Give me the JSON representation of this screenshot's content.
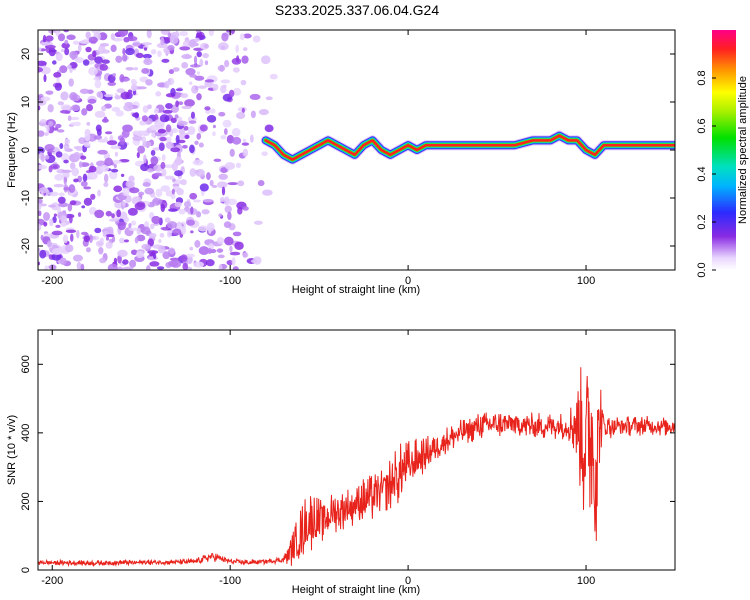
{
  "title": "S233.2025.337.06.04.G24",
  "chart_data": [
    {
      "type": "heatmap",
      "name": "spectrogram",
      "xlabel": "Height of straight line (km)",
      "ylabel": "Frequency (Hz)",
      "xlim": [
        -208,
        150
      ],
      "ylim": [
        -25,
        25
      ],
      "xticks": [
        -200,
        -100,
        0,
        100
      ],
      "yticks": [
        -20,
        -10,
        0,
        10,
        20
      ],
      "colorbar": {
        "label": "Normalized spectral amplitude",
        "ticks": [
          "0.0",
          "0.2",
          "0.4",
          "0.6",
          "0.8"
        ],
        "tick_values": [
          0.0,
          0.2,
          0.4,
          0.6,
          0.8
        ],
        "range": [
          0,
          1
        ]
      },
      "noise_region_x": [
        -208,
        -72
      ],
      "signal_track": {
        "x": [
          -80,
          -75,
          -70,
          -65,
          -60,
          -55,
          -50,
          -45,
          -40,
          -35,
          -30,
          -25,
          -20,
          -15,
          -10,
          -5,
          0,
          5,
          10,
          15,
          20,
          30,
          40,
          50,
          60,
          70,
          80,
          85,
          90,
          95,
          100,
          105,
          110,
          120,
          130,
          140,
          150
        ],
        "freq_hz": [
          2,
          1,
          -1,
          -2,
          -1,
          0,
          1,
          2,
          1,
          0,
          -1,
          1,
          2,
          0,
          -1,
          0,
          1,
          0,
          1,
          1,
          1,
          1,
          1,
          1,
          1,
          2,
          2,
          3,
          2,
          2,
          0,
          -1,
          1,
          1,
          1,
          1,
          1
        ]
      }
    },
    {
      "type": "line",
      "name": "snr",
      "xlabel": "Height of straight line (km)",
      "ylabel": "SNR (10 * v/v)",
      "xlim": [
        -208,
        150
      ],
      "ylim": [
        0,
        700
      ],
      "xticks": [
        -200,
        -100,
        0,
        100
      ],
      "yticks": [
        0,
        200,
        400,
        600
      ],
      "series": [
        {
          "name": "SNR",
          "color": "#e8231c",
          "x": [
            -208,
            -180,
            -150,
            -120,
            -110,
            -100,
            -90,
            -80,
            -70,
            -65,
            -60,
            -55,
            -50,
            -45,
            -40,
            -35,
            -30,
            -25,
            -20,
            -15,
            -10,
            -5,
            0,
            10,
            20,
            30,
            40,
            50,
            60,
            70,
            80,
            90,
            95,
            100,
            103,
            105,
            108,
            110,
            120,
            130,
            140,
            150
          ],
          "y": [
            22,
            20,
            22,
            24,
            40,
            25,
            22,
            25,
            30,
            60,
            110,
            150,
            140,
            160,
            170,
            180,
            190,
            200,
            210,
            230,
            250,
            280,
            300,
            340,
            375,
            400,
            420,
            425,
            425,
            420,
            420,
            420,
            430,
            360,
            420,
            300,
            430,
            420,
            420,
            420,
            420,
            420
          ],
          "amplitude": [
            8,
            8,
            8,
            8,
            15,
            8,
            8,
            8,
            10,
            50,
            80,
            100,
            70,
            60,
            60,
            60,
            60,
            70,
            70,
            60,
            80,
            90,
            80,
            50,
            40,
            40,
            40,
            40,
            40,
            40,
            40,
            40,
            120,
            300,
            260,
            320,
            160,
            40,
            30,
            30,
            30,
            30
          ]
        }
      ]
    }
  ],
  "colors": {
    "snr_line": "#e8231c",
    "noise": "#7b1fe6",
    "axis": "#000000"
  }
}
